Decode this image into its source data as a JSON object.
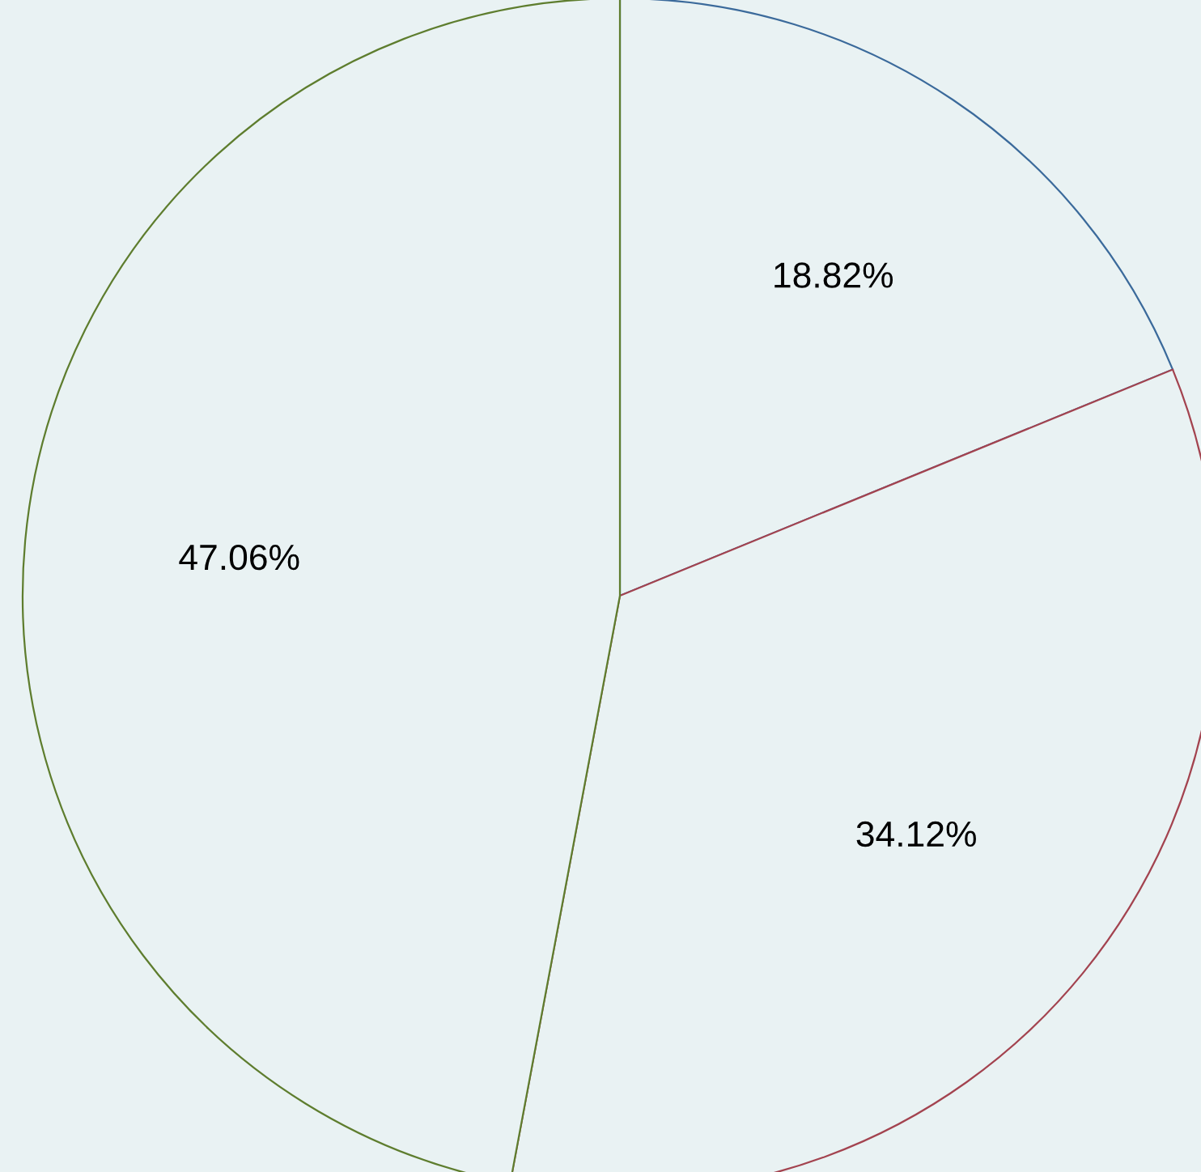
{
  "chart_data": {
    "type": "pie",
    "categories": [
      null,
      null,
      null
    ],
    "values": [
      18.82,
      34.12,
      47.06
    ],
    "colors": [
      "#3b6a9b",
      "#a3434f",
      "#5e7d2e"
    ],
    "value_labels": [
      "18.82%",
      "34.12%",
      "47.06%"
    ]
  }
}
